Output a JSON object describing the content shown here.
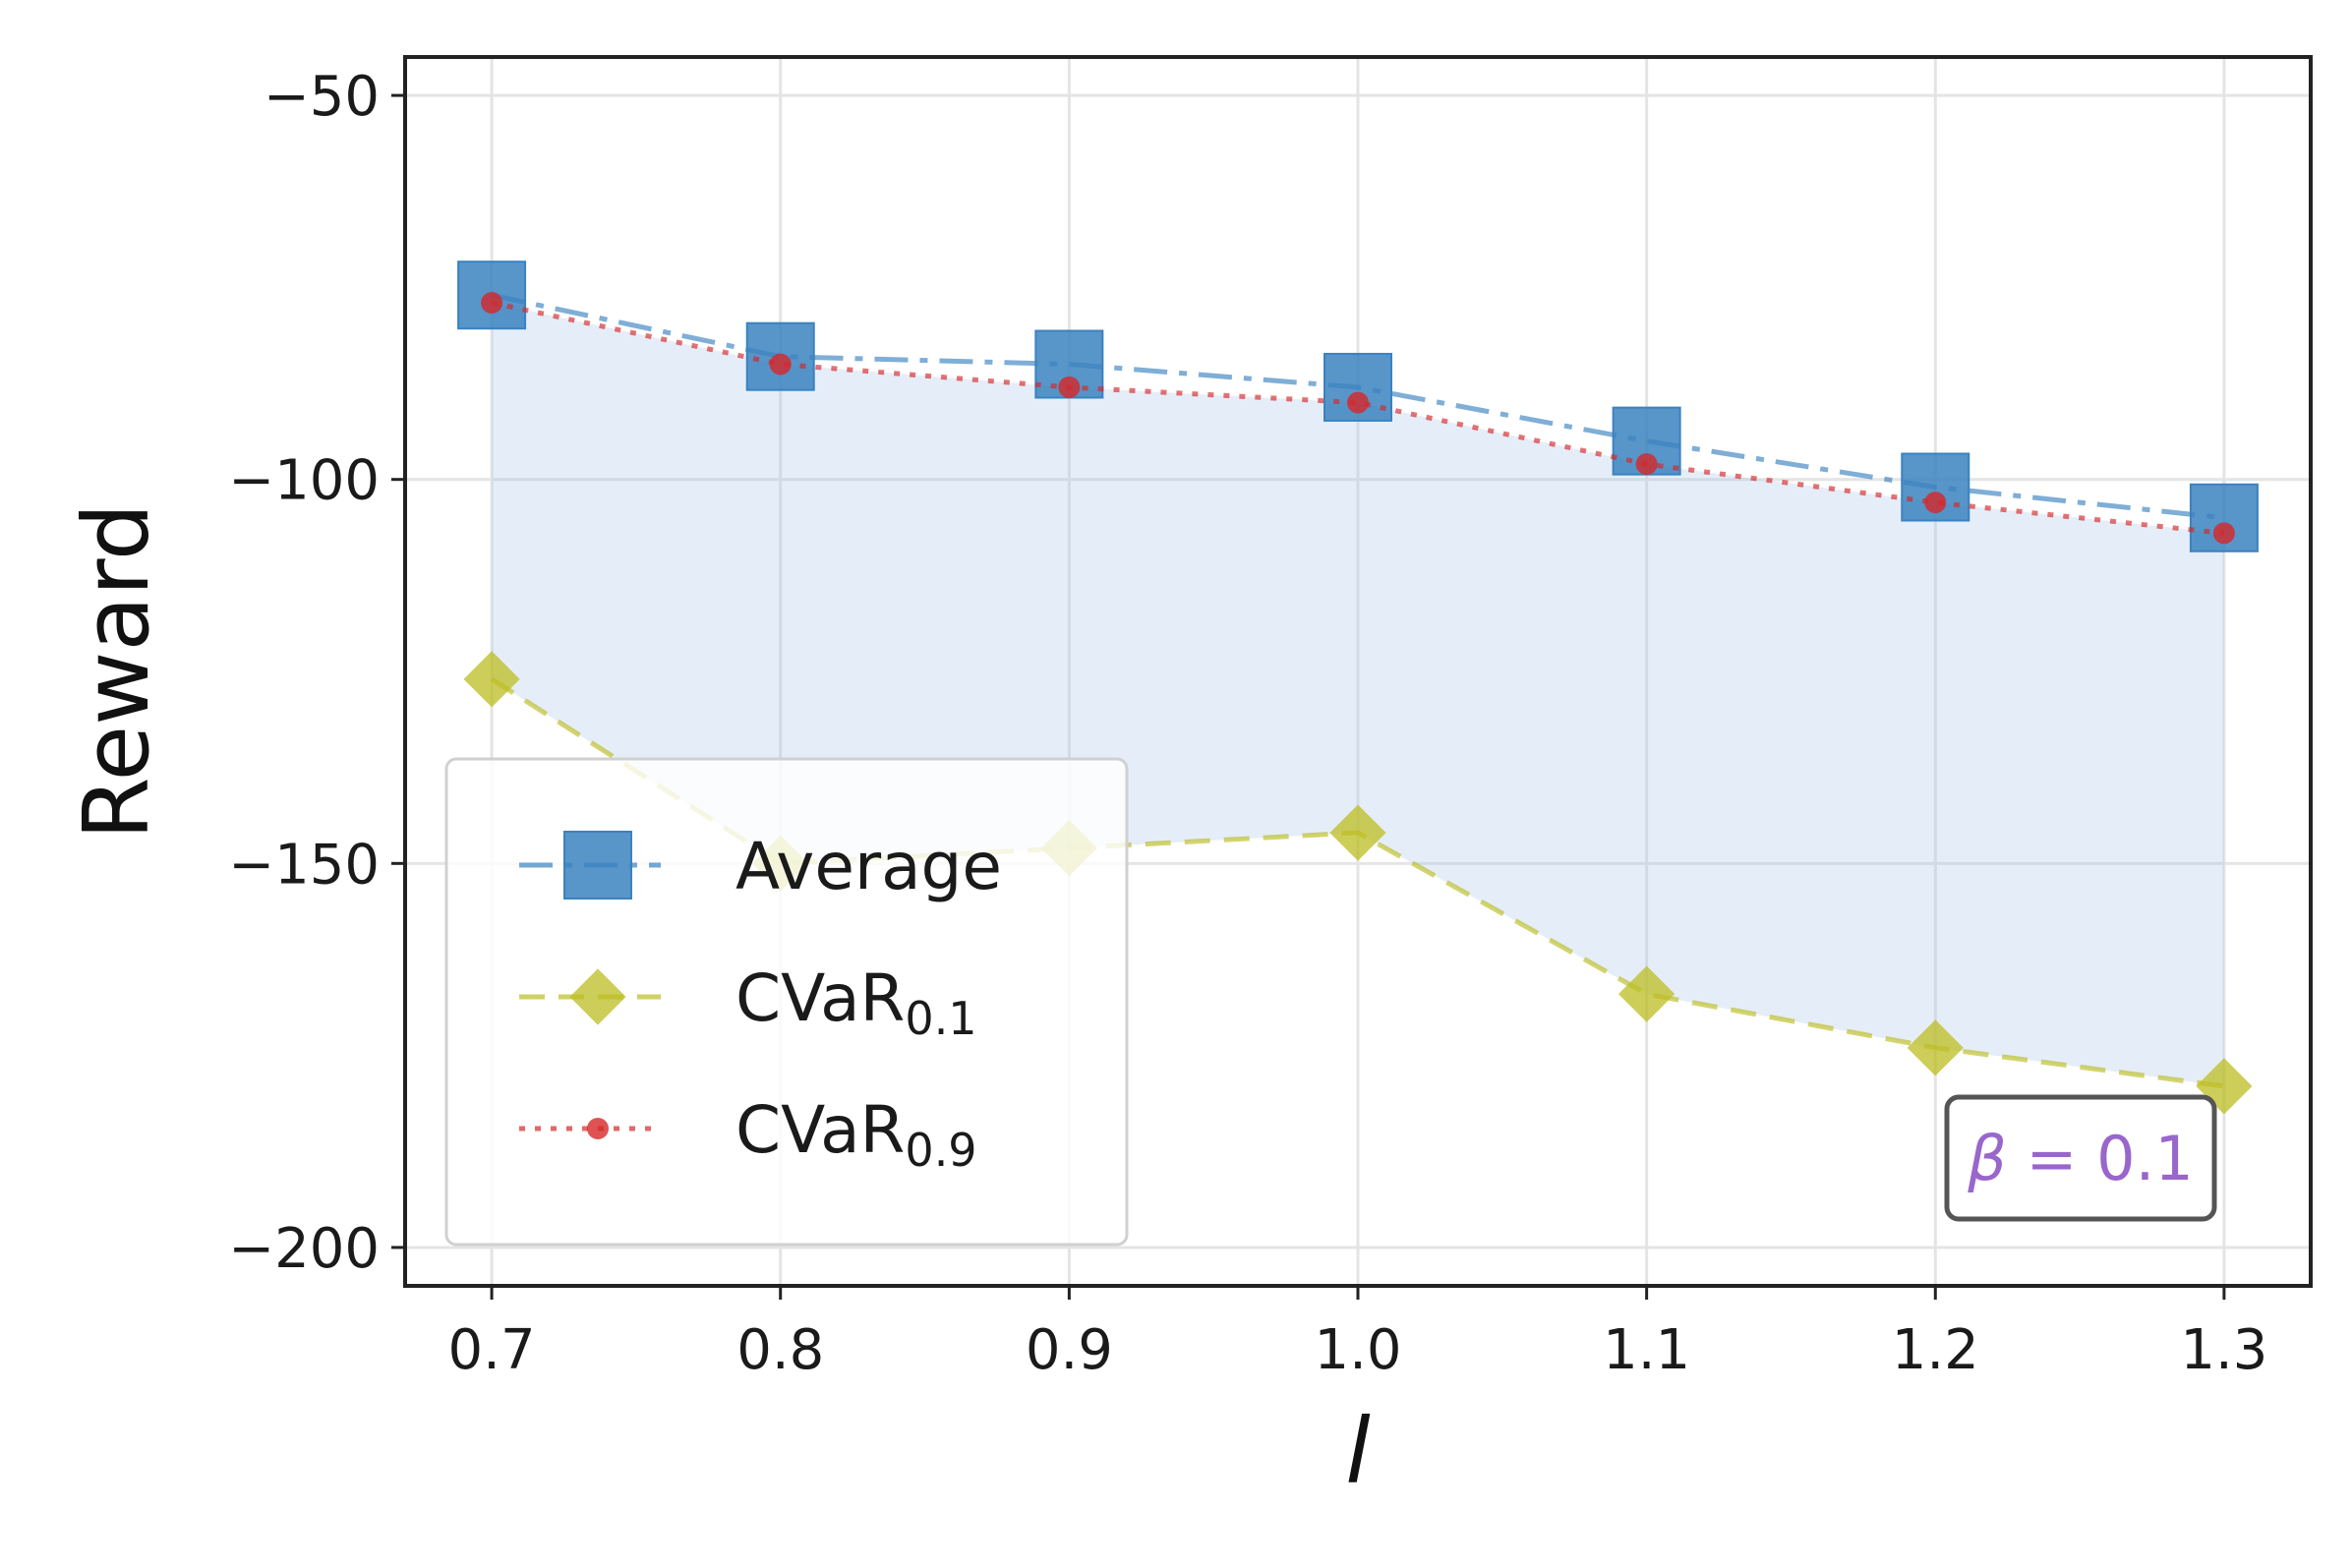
{
  "chart_data": {
    "type": "line",
    "x": [
      0.7,
      0.8,
      0.9,
      1.0,
      1.1,
      1.2,
      1.3
    ],
    "x_tick_labels": [
      "0.7",
      "0.8",
      "0.9",
      "1.0",
      "1.1",
      "1.2",
      "1.3"
    ],
    "y_ticks": [
      -50,
      -100,
      -150,
      -200
    ],
    "y_tick_labels": [
      "−50",
      "−100",
      "−150",
      "−200"
    ],
    "xlim": [
      0.67,
      1.33
    ],
    "ylim": [
      -205,
      -45
    ],
    "xlabel": "l",
    "ylabel": "Reward",
    "grid": true,
    "legend_position": "lower-left",
    "series": [
      {
        "key": "average",
        "name": "Average",
        "values": [
          -76,
          -84,
          -85,
          -88,
          -95,
          -101,
          -105
        ],
        "color": "#3b82c0",
        "marker": "square",
        "linestyle": "dash-dot"
      },
      {
        "key": "cvar01",
        "name": "CVaR",
        "subscript": "0.1",
        "values": [
          -126,
          -150,
          -148,
          -146,
          -167,
          -174,
          -179
        ],
        "color": "#bcbd22",
        "marker": "diamond",
        "linestyle": "dashed"
      },
      {
        "key": "cvar09",
        "name": "CVaR",
        "subscript": "0.9",
        "values": [
          -77,
          -85,
          -88,
          -90,
          -98,
          -103,
          -107
        ],
        "color": "#d62728",
        "marker": "circle",
        "linestyle": "dotted"
      }
    ],
    "shaded_band": {
      "between": [
        "cvar01",
        "cvar09"
      ],
      "color": "#a9c8e8"
    },
    "annotation": {
      "text": "β = 0.1",
      "symbol": "β",
      "value_text": " = 0.1",
      "color": "#9966cc",
      "position": "bottom-right"
    }
  }
}
